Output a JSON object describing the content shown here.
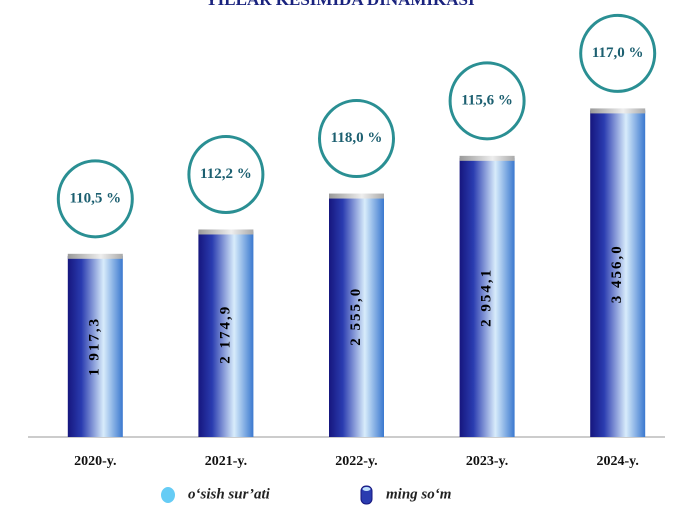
{
  "chart_data": {
    "type": "bar",
    "title": "YILLAR KESIMIDA DINAMIKASI",
    "categories": [
      "2020-y.",
      "2021-y.",
      "2022-y.",
      "2023-y.",
      "2024-y."
    ],
    "series": [
      {
        "name": "ming so‘m",
        "color": "#2a3cb0",
        "values": [
          1917.3,
          2174.9,
          2555.0,
          2954.1,
          3456.0
        ],
        "value_labels": [
          "1 917,3",
          "2 174,9",
          "2 555,0",
          "2 954,1",
          "3 456,0"
        ]
      },
      {
        "name": "o‘sish sur’ati",
        "color": "#66ccf5",
        "values": [
          110.5,
          112.2,
          118.0,
          115.6,
          117.0
        ],
        "value_labels": [
          "110,5 %",
          "112,2 %",
          "118,0 %",
          "115,6 %",
          "117,0 %"
        ]
      }
    ],
    "ylim": [
      0,
      4000
    ]
  }
}
